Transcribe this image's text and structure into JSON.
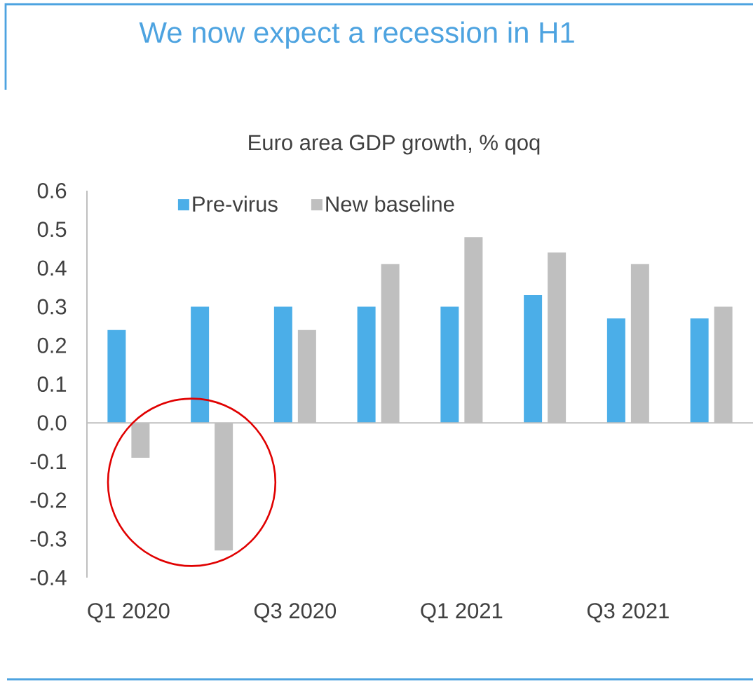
{
  "chart_data": {
    "type": "bar",
    "title": "We now expect a recession in H1",
    "subtitle": "Euro area GDP growth, % qoq",
    "categories": [
      "Q1 2020",
      null,
      "Q3 2020",
      null,
      "Q1 2021",
      null,
      "Q3 2021",
      null
    ],
    "series": [
      {
        "name": "Pre-virus",
        "color": "#4baee8",
        "values": [
          0.24,
          0.3,
          0.3,
          0.3,
          0.3,
          0.33,
          0.27,
          0.27
        ]
      },
      {
        "name": "New baseline",
        "color": "#bfbfbf",
        "values": [
          -0.09,
          -0.33,
          0.24,
          0.41,
          0.48,
          0.44,
          0.41,
          0.3
        ]
      }
    ],
    "ylim": [
      -0.4,
      0.6
    ],
    "yticks": [
      -0.4,
      -0.3,
      -0.2,
      -0.1,
      {
        "value": 0,
        "label": "0.0"
      },
      0.1,
      0.2,
      0.3,
      0.4,
      0.5,
      0.6
    ],
    "legend": "top left"
  }
}
